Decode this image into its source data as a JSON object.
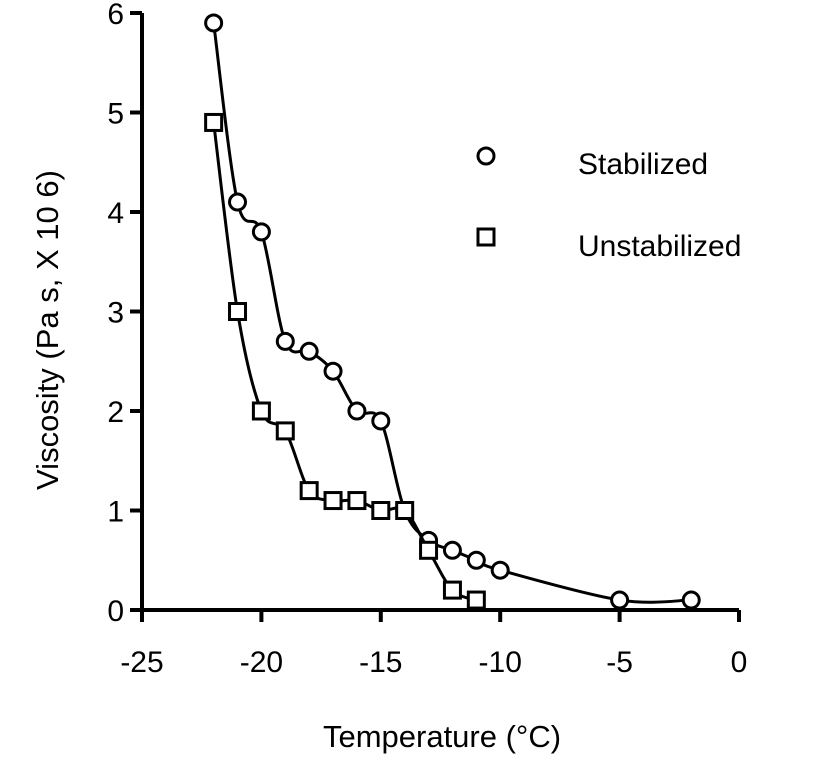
{
  "chart_data": {
    "type": "line",
    "title": "",
    "xlabel": "Temperature  (°C)",
    "ylabel": "Viscosity (Pa s, X 10  6)",
    "xlim": [
      -25,
      0
    ],
    "ylim": [
      0,
      6
    ],
    "xticks": [
      -25,
      -20,
      -15,
      -10,
      -5,
      0
    ],
    "yticks": [
      0,
      1,
      2,
      3,
      4,
      5,
      6
    ],
    "grid": false,
    "legend_position": "top-right",
    "series": [
      {
        "name": "Stabilized",
        "marker": "circle",
        "x": [
          -22,
          -21,
          -20,
          -19,
          -18,
          -17,
          -16,
          -15,
          -14,
          -13,
          -12,
          -11,
          -10,
          -5,
          -2
        ],
        "y": [
          5.9,
          4.1,
          3.8,
          2.7,
          2.6,
          2.4,
          2.0,
          1.9,
          1.0,
          0.7,
          0.6,
          0.5,
          0.4,
          0.1,
          0.1
        ]
      },
      {
        "name": "Unstabilized",
        "marker": "square",
        "x": [
          -22,
          -21,
          -20,
          -19,
          -18,
          -17,
          -16,
          -15,
          -14,
          -13,
          -12,
          -11
        ],
        "y": [
          4.9,
          3.0,
          2.0,
          1.8,
          1.2,
          1.1,
          1.1,
          1.0,
          1.0,
          0.6,
          0.2,
          0.1
        ]
      }
    ]
  }
}
